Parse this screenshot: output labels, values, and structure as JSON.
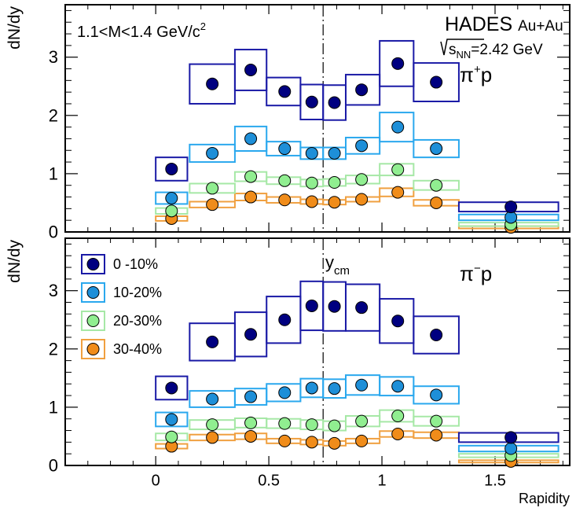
{
  "chart_data": [
    {
      "type": "scatter",
      "panel": "top",
      "title": "",
      "ylabel": "dN/dy",
      "xlabel": "",
      "xlim": [
        -0.4,
        1.83
      ],
      "ylim": [
        0,
        3.9
      ],
      "x_ticks": [
        0,
        0.5,
        1,
        1.5
      ],
      "x_tick_labels": [
        "0",
        "0.5",
        "1",
        "1.5"
      ],
      "y_ticks": [
        0,
        1,
        2,
        3
      ],
      "y_tick_labels": [
        "0",
        "1",
        "2",
        "3"
      ],
      "grid": false,
      "annotations": {
        "mass_range": "1.1<M<1.4 GeV/c",
        "mass_range_sup": "2",
        "experiment": "HADES",
        "system": "Au+Au",
        "energy_sqrt": "s",
        "energy_sub": "NN",
        "energy_value": "=2.42 GeV",
        "pair_base": "π",
        "pair_sup": "+",
        "pair_end": "p"
      },
      "ycm": 0.74,
      "series": [
        {
          "name": "0 -10%",
          "color": "#000080",
          "box_color": "#1a1aa6",
          "points": [
            {
              "x": 0.07,
              "y": 1.08,
              "xlo": 0.0,
              "xhi": 0.14,
              "sys": 0.2
            },
            {
              "x": 0.25,
              "y": 2.54,
              "xlo": 0.15,
              "xhi": 0.35,
              "sys": 0.34
            },
            {
              "x": 0.42,
              "y": 2.78,
              "xlo": 0.35,
              "xhi": 0.49,
              "sys": 0.35
            },
            {
              "x": 0.57,
              "y": 2.41,
              "xlo": 0.49,
              "xhi": 0.64,
              "sys": 0.24
            },
            {
              "x": 0.69,
              "y": 2.23,
              "xlo": 0.64,
              "xhi": 0.74,
              "sys": 0.3
            },
            {
              "x": 0.79,
              "y": 2.22,
              "xlo": 0.74,
              "xhi": 0.84,
              "sys": 0.3
            },
            {
              "x": 0.91,
              "y": 2.44,
              "xlo": 0.84,
              "xhi": 0.99,
              "sys": 0.26
            },
            {
              "x": 1.07,
              "y": 2.89,
              "xlo": 0.99,
              "xhi": 1.14,
              "sys": 0.39
            },
            {
              "x": 1.24,
              "y": 2.57,
              "xlo": 1.14,
              "xhi": 1.34,
              "sys": 0.33
            },
            {
              "x": 1.57,
              "y": 0.43,
              "xlo": 1.34,
              "xhi": 1.78,
              "sys": 0.08
            }
          ]
        },
        {
          "name": "10-20%",
          "color": "#1e8fd8",
          "box_color": "#2aa8ee",
          "points": [
            {
              "x": 0.07,
              "y": 0.58,
              "xlo": 0.0,
              "xhi": 0.14,
              "sys": 0.1
            },
            {
              "x": 0.25,
              "y": 1.35,
              "xlo": 0.15,
              "xhi": 0.35,
              "sys": 0.15
            },
            {
              "x": 0.42,
              "y": 1.6,
              "xlo": 0.35,
              "xhi": 0.49,
              "sys": 0.21
            },
            {
              "x": 0.57,
              "y": 1.43,
              "xlo": 0.49,
              "xhi": 0.64,
              "sys": 0.12
            },
            {
              "x": 0.69,
              "y": 1.35,
              "xlo": 0.64,
              "xhi": 0.74,
              "sys": 0.1
            },
            {
              "x": 0.79,
              "y": 1.35,
              "xlo": 0.74,
              "xhi": 0.84,
              "sys": 0.1
            },
            {
              "x": 0.91,
              "y": 1.48,
              "xlo": 0.84,
              "xhi": 0.99,
              "sys": 0.14
            },
            {
              "x": 1.07,
              "y": 1.8,
              "xlo": 0.99,
              "xhi": 1.14,
              "sys": 0.25
            },
            {
              "x": 1.24,
              "y": 1.43,
              "xlo": 1.14,
              "xhi": 1.34,
              "sys": 0.15
            },
            {
              "x": 1.57,
              "y": 0.25,
              "xlo": 1.34,
              "xhi": 1.78,
              "sys": 0.05
            }
          ]
        },
        {
          "name": "20-30%",
          "color": "#90ee90",
          "box_color": "#a6e8a6",
          "points": [
            {
              "x": 0.07,
              "y": 0.36,
              "xlo": 0.0,
              "xhi": 0.14,
              "sys": 0.05
            },
            {
              "x": 0.25,
              "y": 0.75,
              "xlo": 0.15,
              "xhi": 0.35,
              "sys": 0.08
            },
            {
              "x": 0.42,
              "y": 0.95,
              "xlo": 0.35,
              "xhi": 0.49,
              "sys": 0.08
            },
            {
              "x": 0.57,
              "y": 0.88,
              "xlo": 0.49,
              "xhi": 0.64,
              "sys": 0.06
            },
            {
              "x": 0.69,
              "y": 0.84,
              "xlo": 0.64,
              "xhi": 0.74,
              "sys": 0.06
            },
            {
              "x": 0.79,
              "y": 0.85,
              "xlo": 0.74,
              "xhi": 0.84,
              "sys": 0.06
            },
            {
              "x": 0.91,
              "y": 0.9,
              "xlo": 0.84,
              "xhi": 0.99,
              "sys": 0.07
            },
            {
              "x": 1.07,
              "y": 1.07,
              "xlo": 0.99,
              "xhi": 1.14,
              "sys": 0.1
            },
            {
              "x": 1.24,
              "y": 0.8,
              "xlo": 1.14,
              "xhi": 1.34,
              "sys": 0.08
            },
            {
              "x": 1.57,
              "y": 0.13,
              "xlo": 1.34,
              "xhi": 1.78,
              "sys": 0.03
            }
          ]
        },
        {
          "name": "30-40%",
          "color": "#f08c1a",
          "box_color": "#f0a040",
          "points": [
            {
              "x": 0.07,
              "y": 0.23,
              "xlo": 0.0,
              "xhi": 0.14,
              "sys": 0.04
            },
            {
              "x": 0.25,
              "y": 0.47,
              "xlo": 0.15,
              "xhi": 0.35,
              "sys": 0.05
            },
            {
              "x": 0.42,
              "y": 0.6,
              "xlo": 0.35,
              "xhi": 0.49,
              "sys": 0.06
            },
            {
              "x": 0.57,
              "y": 0.55,
              "xlo": 0.49,
              "xhi": 0.64,
              "sys": 0.05
            },
            {
              "x": 0.69,
              "y": 0.52,
              "xlo": 0.64,
              "xhi": 0.74,
              "sys": 0.04
            },
            {
              "x": 0.79,
              "y": 0.51,
              "xlo": 0.74,
              "xhi": 0.84,
              "sys": 0.04
            },
            {
              "x": 0.91,
              "y": 0.56,
              "xlo": 0.84,
              "xhi": 0.99,
              "sys": 0.04
            },
            {
              "x": 1.07,
              "y": 0.68,
              "xlo": 0.99,
              "xhi": 1.14,
              "sys": 0.07
            },
            {
              "x": 1.24,
              "y": 0.5,
              "xlo": 1.14,
              "xhi": 1.34,
              "sys": 0.05
            },
            {
              "x": 1.57,
              "y": 0.08,
              "xlo": 1.34,
              "xhi": 1.78,
              "sys": 0.02
            }
          ]
        }
      ]
    },
    {
      "type": "scatter",
      "panel": "bottom",
      "title": "",
      "ylabel": "dN/dy",
      "xlabel": "Rapidity",
      "xlim": [
        -0.4,
        1.83
      ],
      "ylim": [
        0,
        3.9
      ],
      "x_ticks": [
        0,
        0.5,
        1,
        1.5
      ],
      "x_tick_labels": [
        "0",
        "0.5",
        "1",
        "1.5"
      ],
      "y_ticks": [
        0,
        1,
        2,
        3
      ],
      "y_tick_labels": [
        "0",
        "1",
        "2",
        "3"
      ],
      "grid": false,
      "legend_position": "top-left",
      "annotations": {
        "ycm_base": "y",
        "ycm_sub": "cm",
        "pair_base": "π",
        "pair_sup": "−",
        "pair_end": "p"
      },
      "ycm": 0.74,
      "series": [
        {
          "name": "0 -10%",
          "color": "#000080",
          "box_color": "#1a1aa6",
          "points": [
            {
              "x": 0.07,
              "y": 1.33,
              "xlo": 0.0,
              "xhi": 0.14,
              "sys": 0.2
            },
            {
              "x": 0.25,
              "y": 2.12,
              "xlo": 0.15,
              "xhi": 0.35,
              "sys": 0.32
            },
            {
              "x": 0.42,
              "y": 2.25,
              "xlo": 0.35,
              "xhi": 0.49,
              "sys": 0.38
            },
            {
              "x": 0.57,
              "y": 2.5,
              "xlo": 0.49,
              "xhi": 0.64,
              "sys": 0.4
            },
            {
              "x": 0.69,
              "y": 2.74,
              "xlo": 0.64,
              "xhi": 0.74,
              "sys": 0.42
            },
            {
              "x": 0.79,
              "y": 2.73,
              "xlo": 0.74,
              "xhi": 0.84,
              "sys": 0.42
            },
            {
              "x": 0.91,
              "y": 2.71,
              "xlo": 0.84,
              "xhi": 0.99,
              "sys": 0.4
            },
            {
              "x": 1.07,
              "y": 2.48,
              "xlo": 0.99,
              "xhi": 1.14,
              "sys": 0.38
            },
            {
              "x": 1.24,
              "y": 2.24,
              "xlo": 1.14,
              "xhi": 1.34,
              "sys": 0.32
            },
            {
              "x": 1.57,
              "y": 0.48,
              "xlo": 1.34,
              "xhi": 1.78,
              "sys": 0.08
            }
          ]
        },
        {
          "name": "10-20%",
          "color": "#1e8fd8",
          "box_color": "#2aa8ee",
          "points": [
            {
              "x": 0.07,
              "y": 0.79,
              "xlo": 0.0,
              "xhi": 0.14,
              "sys": 0.12
            },
            {
              "x": 0.25,
              "y": 1.14,
              "xlo": 0.15,
              "xhi": 0.35,
              "sys": 0.14
            },
            {
              "x": 0.42,
              "y": 1.18,
              "xlo": 0.35,
              "xhi": 0.49,
              "sys": 0.14
            },
            {
              "x": 0.57,
              "y": 1.25,
              "xlo": 0.49,
              "xhi": 0.64,
              "sys": 0.15
            },
            {
              "x": 0.69,
              "y": 1.33,
              "xlo": 0.64,
              "xhi": 0.74,
              "sys": 0.16
            },
            {
              "x": 0.79,
              "y": 1.32,
              "xlo": 0.74,
              "xhi": 0.84,
              "sys": 0.16
            },
            {
              "x": 0.91,
              "y": 1.38,
              "xlo": 0.84,
              "xhi": 0.99,
              "sys": 0.17
            },
            {
              "x": 1.07,
              "y": 1.36,
              "xlo": 0.99,
              "xhi": 1.14,
              "sys": 0.16
            },
            {
              "x": 1.24,
              "y": 1.21,
              "xlo": 1.14,
              "xhi": 1.34,
              "sys": 0.15
            },
            {
              "x": 1.57,
              "y": 0.29,
              "xlo": 1.34,
              "xhi": 1.78,
              "sys": 0.05
            }
          ]
        },
        {
          "name": "20-30%",
          "color": "#90ee90",
          "box_color": "#a6e8a6",
          "points": [
            {
              "x": 0.07,
              "y": 0.49,
              "xlo": 0.0,
              "xhi": 0.14,
              "sys": 0.06
            },
            {
              "x": 0.25,
              "y": 0.7,
              "xlo": 0.15,
              "xhi": 0.35,
              "sys": 0.08
            },
            {
              "x": 0.42,
              "y": 0.73,
              "xlo": 0.35,
              "xhi": 0.49,
              "sys": 0.08
            },
            {
              "x": 0.57,
              "y": 0.72,
              "xlo": 0.49,
              "xhi": 0.64,
              "sys": 0.08
            },
            {
              "x": 0.69,
              "y": 0.7,
              "xlo": 0.64,
              "xhi": 0.74,
              "sys": 0.08
            },
            {
              "x": 0.79,
              "y": 0.68,
              "xlo": 0.74,
              "xhi": 0.84,
              "sys": 0.08
            },
            {
              "x": 0.91,
              "y": 0.76,
              "xlo": 0.84,
              "xhi": 0.99,
              "sys": 0.09
            },
            {
              "x": 1.07,
              "y": 0.85,
              "xlo": 0.99,
              "xhi": 1.14,
              "sys": 0.1
            },
            {
              "x": 1.24,
              "y": 0.76,
              "xlo": 1.14,
              "xhi": 1.34,
              "sys": 0.08
            },
            {
              "x": 1.57,
              "y": 0.17,
              "xlo": 1.34,
              "xhi": 1.78,
              "sys": 0.03
            }
          ]
        },
        {
          "name": "30-40%",
          "color": "#f08c1a",
          "box_color": "#f0a040",
          "points": [
            {
              "x": 0.07,
              "y": 0.33,
              "xlo": 0.0,
              "xhi": 0.14,
              "sys": 0.04
            },
            {
              "x": 0.25,
              "y": 0.48,
              "xlo": 0.15,
              "xhi": 0.35,
              "sys": 0.05
            },
            {
              "x": 0.42,
              "y": 0.5,
              "xlo": 0.35,
              "xhi": 0.49,
              "sys": 0.05
            },
            {
              "x": 0.57,
              "y": 0.42,
              "xlo": 0.49,
              "xhi": 0.64,
              "sys": 0.04
            },
            {
              "x": 0.69,
              "y": 0.4,
              "xlo": 0.64,
              "xhi": 0.74,
              "sys": 0.04
            },
            {
              "x": 0.79,
              "y": 0.38,
              "xlo": 0.74,
              "xhi": 0.84,
              "sys": 0.04
            },
            {
              "x": 0.91,
              "y": 0.42,
              "xlo": 0.84,
              "xhi": 0.99,
              "sys": 0.04
            },
            {
              "x": 1.07,
              "y": 0.54,
              "xlo": 0.99,
              "xhi": 1.14,
              "sys": 0.05
            },
            {
              "x": 1.24,
              "y": 0.52,
              "xlo": 1.14,
              "xhi": 1.34,
              "sys": 0.05
            },
            {
              "x": 1.57,
              "y": 0.07,
              "xlo": 1.34,
              "xhi": 1.78,
              "sys": 0.02
            }
          ]
        }
      ]
    }
  ]
}
